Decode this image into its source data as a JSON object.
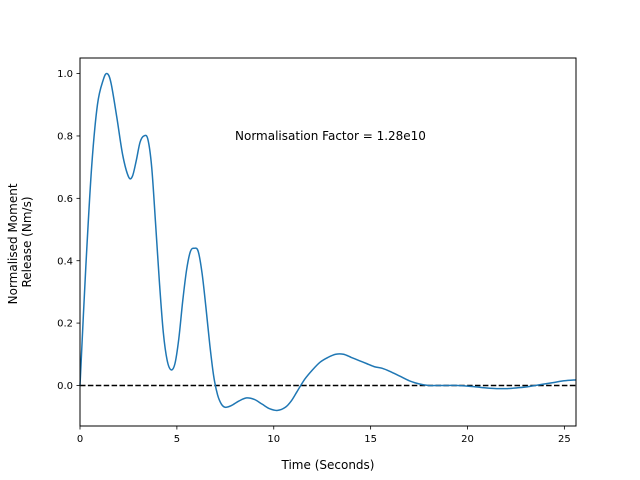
{
  "chart_data": {
    "type": "line",
    "title": "",
    "xlabel": "Time (Seconds)",
    "ylabel_lines": [
      "Normalised Moment",
      "Release (Nm/s)"
    ],
    "xlim": [
      0,
      25.6
    ],
    "ylim": [
      -0.13,
      1.05
    ],
    "xticks": [
      0,
      5,
      10,
      15,
      20,
      25
    ],
    "yticks": [
      0.0,
      0.2,
      0.4,
      0.6,
      0.8,
      1.0
    ],
    "xtick_labels": [
      "0",
      "5",
      "10",
      "15",
      "20",
      "25"
    ],
    "ytick_labels": [
      "0.0",
      "0.2",
      "0.4",
      "0.6",
      "0.8",
      "1.0"
    ],
    "grid": false,
    "annotation": {
      "text": "Normalisation Factor = 1.28e10",
      "x": 8.0,
      "y": 0.8
    },
    "reference_line": {
      "y": 0.0,
      "style": "dashed",
      "color": "#000000"
    },
    "series": [
      {
        "color": "#1f77b4",
        "x": [
          0,
          0.3,
          0.6,
          0.9,
          1.2,
          1.4,
          1.6,
          1.9,
          2.2,
          2.5,
          2.7,
          2.9,
          3.1,
          3.3,
          3.5,
          3.7,
          3.9,
          4.1,
          4.3,
          4.5,
          4.7,
          4.9,
          5.1,
          5.3,
          5.5,
          5.7,
          5.9,
          6.1,
          6.3,
          6.5,
          6.7,
          6.9,
          7.1,
          7.3,
          7.5,
          7.8,
          8.2,
          8.6,
          9.0,
          9.4,
          9.8,
          10.2,
          10.6,
          10.9,
          11.2,
          11.6,
          12.0,
          12.4,
          12.8,
          13.2,
          13.6,
          14.0,
          14.4,
          14.8,
          15.2,
          15.6,
          16.0,
          16.5,
          17.0,
          17.5,
          18.0,
          18.5,
          19.0,
          19.5,
          20.0,
          20.5,
          21.0,
          21.5,
          22.0,
          22.5,
          23.0,
          23.5,
          24.0,
          24.5,
          25.0,
          25.6
        ],
        "y": [
          0.0,
          0.38,
          0.7,
          0.9,
          0.98,
          1.0,
          0.97,
          0.86,
          0.74,
          0.67,
          0.67,
          0.72,
          0.78,
          0.8,
          0.79,
          0.7,
          0.52,
          0.33,
          0.17,
          0.08,
          0.05,
          0.07,
          0.15,
          0.27,
          0.37,
          0.43,
          0.44,
          0.43,
          0.36,
          0.25,
          0.13,
          0.03,
          -0.03,
          -0.06,
          -0.07,
          -0.065,
          -0.05,
          -0.04,
          -0.045,
          -0.06,
          -0.075,
          -0.08,
          -0.07,
          -0.05,
          -0.02,
          0.02,
          0.05,
          0.075,
          0.09,
          0.1,
          0.1,
          0.09,
          0.08,
          0.07,
          0.06,
          0.055,
          0.045,
          0.03,
          0.015,
          0.005,
          0.0,
          0.0,
          0.0,
          0.0,
          -0.002,
          -0.005,
          -0.008,
          -0.01,
          -0.01,
          -0.008,
          -0.005,
          0.0,
          0.005,
          0.01,
          0.015,
          0.018
        ]
      }
    ]
  }
}
